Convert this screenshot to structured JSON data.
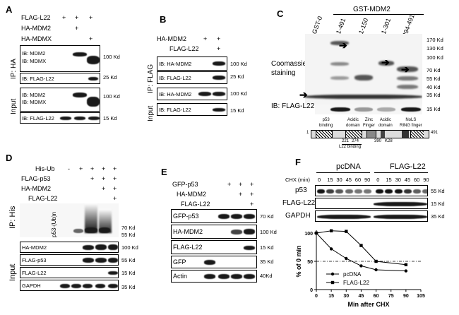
{
  "panelA": {
    "label": "A",
    "row_labels": [
      "FLAG-L22",
      "HA-MDM2",
      "HA-MDMX"
    ],
    "signs": [
      [
        "+",
        "+",
        "+"
      ],
      [
        "",
        "+",
        ""
      ],
      [
        "",
        "",
        "+"
      ]
    ],
    "side_ip": "IP: HA",
    "side_input": "Input",
    "blots": [
      {
        "ib": [
          "IB: MDM2",
          "IB: MDMX"
        ],
        "mw": "100 Kd"
      },
      {
        "ib": [
          "IB: FLAG-L22"
        ],
        "mw": "25 Kd"
      },
      {
        "ib": [
          "IB: MDM2",
          "IB: MDMX"
        ],
        "mw": "100 Kd"
      },
      {
        "ib": [
          "IB: FLAG-L22"
        ],
        "mw": "15 Kd"
      }
    ]
  },
  "panelB": {
    "label": "B",
    "row_labels": [
      "HA-MDM2",
      "FLAG-L22"
    ],
    "signs": [
      [
        "+",
        "+"
      ],
      [
        "",
        "+"
      ]
    ],
    "side_ip": "IP: FLAG",
    "side_input": "Input",
    "blots": [
      {
        "ib": "IB: HA-MDM2",
        "mw": "100 Kd"
      },
      {
        "ib": "IB: FLAG-L22",
        "mw": "25 Kd"
      },
      {
        "ib": "IB: HA-MDM2",
        "mw": "100 Kd"
      },
      {
        "ib": "IB: FLAG-L22",
        "mw": "15 Kd"
      }
    ]
  },
  "panelC": {
    "label": "C",
    "header": "GST-MDM2",
    "lanes": [
      "GST-0",
      "1-491",
      "1-150",
      "1-301",
      "294-491"
    ],
    "markers": [
      "170 Kd",
      "130 Kd",
      "100 Kd",
      "70 Kd",
      "55 Kd",
      "40 Kd",
      "35 Kd",
      "15 Kd"
    ],
    "coomassie": "Coomassie\nstaining",
    "ib": "IB: FLAG-L22",
    "domains": [
      "p53\nbinding",
      "Acidic\ndomain",
      "Zinc\nFinger",
      "Acidic\ndomain",
      "NoLS\nRING finger"
    ],
    "positions": [
      "1",
      "221",
      "274",
      "390",
      "K28",
      "491"
    ],
    "l22_binding": "L22 binding"
  },
  "panelD": {
    "label": "D",
    "row_labels": [
      "His-Ub",
      "FLAG-p53",
      "HA-MDM2",
      "FLAG-L22"
    ],
    "signs": [
      [
        "-",
        "+",
        "+",
        "+",
        "+"
      ],
      [
        "",
        "",
        "+",
        "+",
        "+"
      ],
      [
        "",
        "",
        "",
        "+",
        "+"
      ],
      [
        "",
        "",
        "",
        "",
        "+"
      ]
    ],
    "side_ip": "IP: His",
    "side_input": "Input",
    "vertical_label": "p53-(Ub)n",
    "top_mw": [
      "70 Kd",
      "55 Kd"
    ],
    "blots": [
      {
        "name": "HA-MDM2",
        "mw": "100 Kd"
      },
      {
        "name": "FLAG-p53",
        "mw": "55 Kd"
      },
      {
        "name": "FLAG-L22",
        "mw": "15 Kd"
      },
      {
        "name": "GAPDH",
        "mw": "35 Kd"
      }
    ]
  },
  "panelE": {
    "label": "E",
    "row_labels": [
      "GFP-p53",
      "HA-MDM2",
      "FLAG-L22"
    ],
    "signs": [
      [
        "",
        "+",
        "+",
        "+"
      ],
      [
        "",
        "",
        "+",
        "+"
      ],
      [
        "",
        "",
        "",
        "+"
      ]
    ],
    "blots": [
      {
        "name": "GFP-p53",
        "mw": "70 Kd"
      },
      {
        "name": "HA-MDM2",
        "mw": "100 Kd"
      },
      {
        "name": "FLAG-L22",
        "mw": "15 Kd"
      },
      {
        "name": "GFP",
        "mw": "35 Kd"
      },
      {
        "name": "Actin",
        "mw": "40Kd"
      }
    ]
  },
  "panelF": {
    "label": "F",
    "groups": [
      "pcDNA",
      "FLAG-L22"
    ],
    "chx_label": "CHX (min)",
    "times": [
      "0",
      "15",
      "30",
      "45",
      "60",
      "90",
      "0",
      "15",
      "30",
      "45",
      "60",
      "90"
    ],
    "blots": [
      {
        "name": "p53",
        "mw": "55 Kd"
      },
      {
        "name": "FLAG-L22",
        "mw": "15 Kd"
      },
      {
        "name": "GAPDH",
        "mw": "35 Kd"
      }
    ],
    "chart_data": {
      "type": "line",
      "xlabel": "Min after CHX",
      "ylabel": "% of 0 min",
      "xlim": [
        0,
        105
      ],
      "ylim": [
        0,
        100
      ],
      "xticks": [
        "0",
        "15",
        "30",
        "45",
        "60",
        "75",
        "90",
        "105"
      ],
      "yticks": [
        "0",
        "50",
        "100"
      ],
      "reference_line": 50,
      "series": [
        {
          "name": "pcDNA",
          "marker": "circle",
          "x": [
            0,
            15,
            30,
            45,
            60,
            90
          ],
          "y": [
            100,
            72,
            55,
            42,
            35,
            33
          ]
        },
        {
          "name": "FLAG-L22",
          "marker": "square",
          "x": [
            0,
            15,
            30,
            45,
            60,
            90
          ],
          "y": [
            100,
            104,
            103,
            78,
            50,
            44
          ]
        }
      ]
    }
  }
}
